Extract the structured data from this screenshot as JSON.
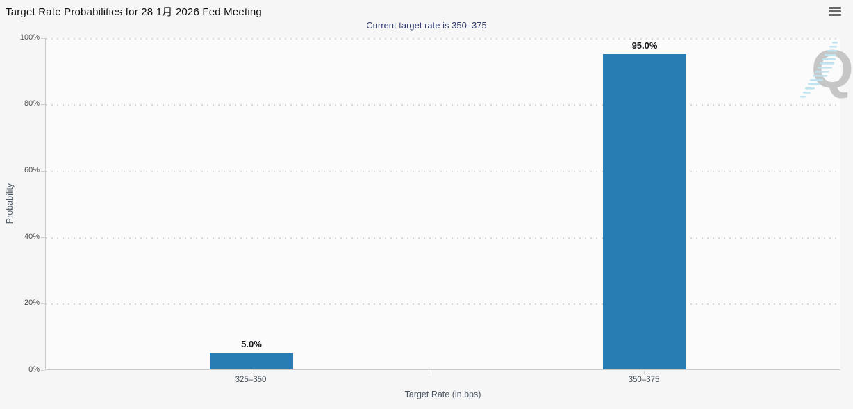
{
  "header": {
    "title": "Target Rate Probabilities for 28 1月 2026 Fed Meeting",
    "menu_icon": "hamburger-menu-icon"
  },
  "chart_data": {
    "type": "bar",
    "title": "Target Rate Probabilities for 28 1月 2026 Fed Meeting",
    "subtitle": "Current target rate is 350–375",
    "categories": [
      "325–350",
      "350–375"
    ],
    "values": [
      5.0,
      95.0
    ],
    "data_labels": [
      "5.0%",
      "95.0%"
    ],
    "xlabel": "Target Rate (in bps)",
    "ylabel": "Probability",
    "ylim": [
      0,
      100
    ],
    "yticks": [
      "0%",
      "20%",
      "40%",
      "60%",
      "80%",
      "100%"
    ],
    "grid": "dotted horizontal gridlines every 20%",
    "legend": "none",
    "bar_color": "#287db2",
    "subtitle_color": "#333d6b",
    "background_color": "#f6f6f6",
    "watermark": "Q"
  }
}
